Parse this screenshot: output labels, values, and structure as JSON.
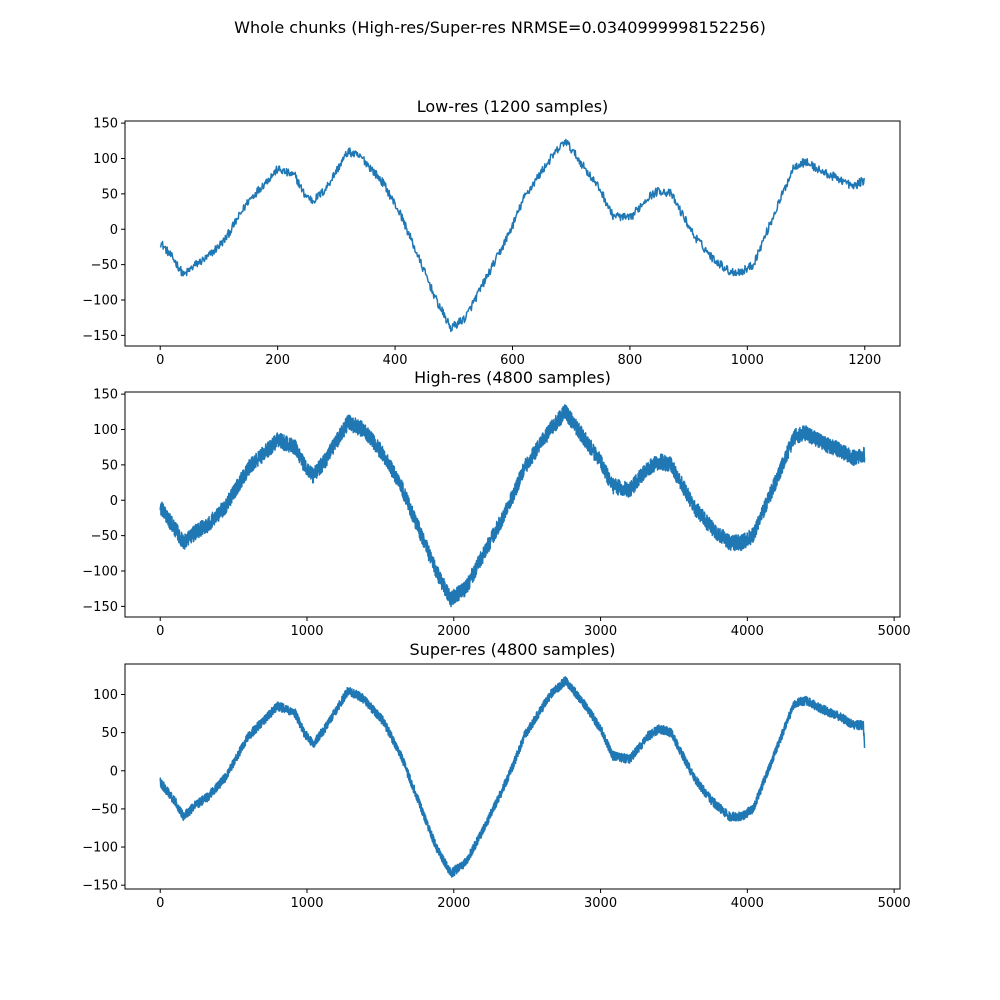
{
  "figure": {
    "suptitle": "Whole chunks (High-res/Super-res NRMSE=0.0340999998152256)"
  },
  "chart_data": [
    {
      "type": "line",
      "title": "Low-res (1200 samples)",
      "xlabel": "",
      "ylabel": "",
      "n_samples": 1200,
      "xlim": [
        -60,
        1260
      ],
      "ylim": [
        -165,
        153
      ],
      "xticks": [
        0,
        200,
        400,
        600,
        800,
        1000,
        1200
      ],
      "yticks": [
        -150,
        -100,
        -50,
        0,
        50,
        100,
        150
      ],
      "line_color": "#1f77b4",
      "noise_amplitude": 6,
      "grid": false,
      "series": [
        {
          "x": [
            0,
            25,
            40,
            60,
            80,
            110,
            150,
            200,
            230,
            245,
            260,
            280,
            320,
            345,
            380,
            410,
            440,
            470,
            495,
            520,
            545,
            580,
            600,
            620,
            640,
            665,
            690,
            720,
            750,
            770,
            800,
            830,
            850,
            870,
            890,
            910,
            940,
            970,
            990,
            1010,
            1040,
            1080,
            1100,
            1130,
            1160,
            1180,
            1200
          ],
          "y": [
            -18,
            -45,
            -65,
            -50,
            -40,
            -15,
            40,
            85,
            75,
            50,
            40,
            55,
            110,
            100,
            65,
            20,
            -40,
            -100,
            -140,
            -125,
            -85,
            -30,
            5,
            45,
            70,
            100,
            125,
            90,
            55,
            20,
            15,
            45,
            55,
            50,
            20,
            -10,
            -40,
            -60,
            -60,
            -50,
            10,
            90,
            95,
            80,
            70,
            60,
            70
          ]
        }
      ]
    },
    {
      "type": "line",
      "title": "High-res (4800 samples)",
      "xlabel": "",
      "ylabel": "",
      "n_samples": 4800,
      "xlim": [
        -240,
        5040
      ],
      "ylim": [
        -165,
        153
      ],
      "xticks": [
        0,
        1000,
        2000,
        3000,
        4000,
        5000
      ],
      "yticks": [
        -150,
        -100,
        -50,
        0,
        50,
        100,
        150
      ],
      "line_color": "#1f77b4",
      "noise_amplitude": 11,
      "grid": false,
      "series": [
        {
          "x": [
            0,
            100,
            160,
            240,
            320,
            440,
            600,
            800,
            920,
            980,
            1040,
            1120,
            1280,
            1380,
            1520,
            1640,
            1760,
            1880,
            1980,
            2080,
            2180,
            2320,
            2400,
            2480,
            2560,
            2660,
            2760,
            2880,
            3000,
            3080,
            3200,
            3320,
            3400,
            3480,
            3560,
            3640,
            3760,
            3880,
            3960,
            4040,
            4160,
            4320,
            4400,
            4520,
            4640,
            4720,
            4800
          ],
          "y": [
            -10,
            -40,
            -60,
            -45,
            -35,
            -10,
            45,
            85,
            75,
            50,
            35,
            55,
            110,
            100,
            65,
            20,
            -40,
            -100,
            -140,
            -125,
            -85,
            -30,
            5,
            45,
            70,
            100,
            125,
            90,
            55,
            20,
            15,
            45,
            55,
            50,
            20,
            -10,
            -40,
            -60,
            -60,
            -50,
            10,
            90,
            95,
            80,
            70,
            60,
            65
          ]
        }
      ]
    },
    {
      "type": "line",
      "title": "Super-res (4800 samples)",
      "xlabel": "",
      "ylabel": "",
      "n_samples": 4800,
      "xlim": [
        -240,
        5040
      ],
      "ylim": [
        -155,
        140
      ],
      "xticks": [
        0,
        1000,
        2000,
        3000,
        4000,
        5000
      ],
      "yticks": [
        -150,
        -100,
        -50,
        0,
        50,
        100
      ],
      "line_color": "#1f77b4",
      "noise_amplitude": 6,
      "grid": false,
      "series": [
        {
          "x": [
            0,
            100,
            160,
            240,
            320,
            440,
            600,
            800,
            920,
            980,
            1040,
            1120,
            1280,
            1380,
            1520,
            1640,
            1760,
            1880,
            1980,
            2080,
            2180,
            2320,
            2400,
            2480,
            2560,
            2660,
            2760,
            2880,
            3000,
            3080,
            3200,
            3320,
            3400,
            3480,
            3560,
            3640,
            3760,
            3880,
            3960,
            4040,
            4160,
            4320,
            4400,
            4520,
            4640,
            4720,
            4790,
            4800
          ],
          "y": [
            -15,
            -40,
            -60,
            -45,
            -35,
            -10,
            45,
            85,
            75,
            50,
            35,
            55,
            105,
            95,
            65,
            20,
            -40,
            -100,
            -135,
            -120,
            -85,
            -30,
            5,
            45,
            70,
            100,
            118,
            90,
            55,
            20,
            15,
            45,
            55,
            50,
            20,
            -10,
            -40,
            -60,
            -60,
            -50,
            10,
            88,
            92,
            80,
            70,
            60,
            60,
            30
          ]
        }
      ]
    }
  ]
}
